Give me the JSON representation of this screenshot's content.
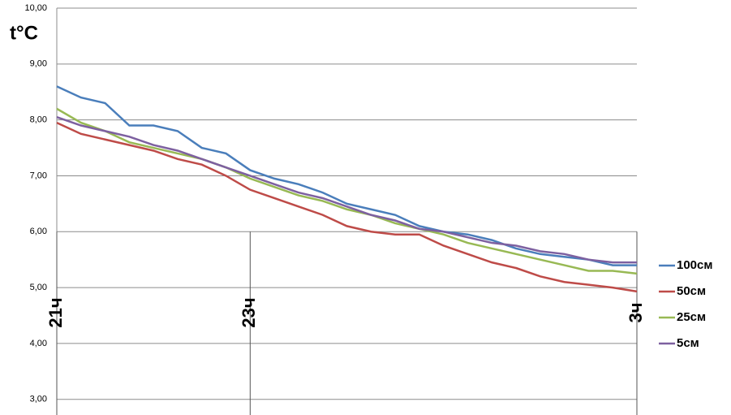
{
  "chart_data": {
    "type": "line",
    "y_title": "t°C",
    "x": [
      21,
      21.25,
      21.5,
      21.75,
      22,
      22.25,
      22.5,
      22.75,
      23,
      23.25,
      23.5,
      23.75,
      24,
      24.25,
      24.5,
      24.75,
      25,
      25.25,
      25.5,
      25.75,
      26,
      26.25,
      26.5,
      26.75,
      27
    ],
    "series": [
      {
        "name": "100см",
        "color": "#4a7ebb",
        "values": [
          8.6,
          8.4,
          8.3,
          7.9,
          7.9,
          7.8,
          7.5,
          7.4,
          7.1,
          6.95,
          6.85,
          6.7,
          6.5,
          6.4,
          6.3,
          6.1,
          6.0,
          5.95,
          5.85,
          5.7,
          5.6,
          5.55,
          5.5,
          5.4,
          5.4
        ]
      },
      {
        "name": "50см",
        "color": "#be4b48",
        "values": [
          7.95,
          7.75,
          7.65,
          7.55,
          7.45,
          7.3,
          7.2,
          7.0,
          6.75,
          6.6,
          6.45,
          6.3,
          6.1,
          6.0,
          5.95,
          5.95,
          5.75,
          5.6,
          5.45,
          5.35,
          5.2,
          5.1,
          5.05,
          5.0,
          4.93
        ]
      },
      {
        "name": "25см",
        "color": "#98b954",
        "values": [
          8.2,
          7.95,
          7.8,
          7.6,
          7.5,
          7.4,
          7.3,
          7.15,
          6.95,
          6.8,
          6.65,
          6.55,
          6.4,
          6.3,
          6.15,
          6.05,
          5.95,
          5.8,
          5.7,
          5.6,
          5.5,
          5.4,
          5.3,
          5.3,
          5.25
        ]
      },
      {
        "name": "5см",
        "color": "#7d60a0",
        "values": [
          8.05,
          7.9,
          7.8,
          7.7,
          7.55,
          7.45,
          7.3,
          7.15,
          7.0,
          6.85,
          6.7,
          6.6,
          6.45,
          6.3,
          6.2,
          6.05,
          6.0,
          5.9,
          5.8,
          5.75,
          5.65,
          5.6,
          5.5,
          5.45,
          5.45
        ]
      }
    ],
    "xlim": [
      21,
      27
    ],
    "xticks": [
      {
        "value": 21,
        "label": "21ч"
      },
      {
        "value": 23,
        "label": "23ч"
      },
      {
        "value": 27,
        "label": "3ч"
      }
    ],
    "ylim": [
      2.72,
      10
    ],
    "yticks": [
      {
        "value": 3,
        "label": "3,00"
      },
      {
        "value": 4,
        "label": "4,00"
      },
      {
        "value": 5,
        "label": "5,00"
      },
      {
        "value": 6,
        "label": "6,00"
      },
      {
        "value": 7,
        "label": "7,00"
      },
      {
        "value": 8,
        "label": "8,00"
      },
      {
        "value": 9,
        "label": "9,00"
      },
      {
        "value": 10,
        "label": "10,00"
      }
    ],
    "grid": true,
    "legend": "right"
  }
}
